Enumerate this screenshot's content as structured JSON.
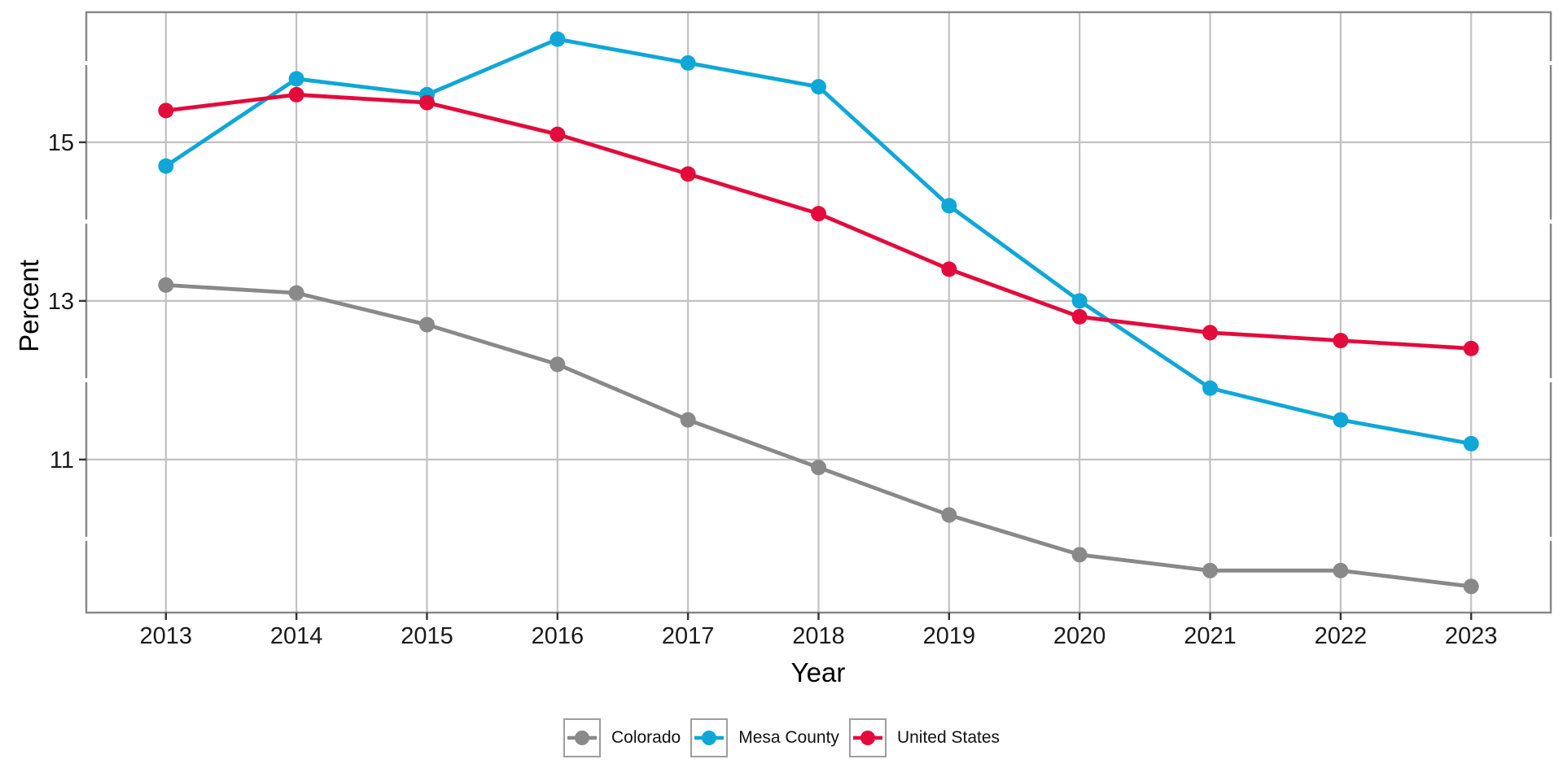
{
  "chart_data": {
    "type": "line",
    "title": "",
    "xlabel": "Year",
    "ylabel": "Percent",
    "x": [
      2013,
      2014,
      2015,
      2016,
      2017,
      2018,
      2019,
      2020,
      2021,
      2022,
      2023
    ],
    "x_tick_labels": [
      "2013",
      "2014",
      "2015",
      "2016",
      "2017",
      "2018",
      "2019",
      "2020",
      "2021",
      "2022",
      "2023"
    ],
    "series": [
      {
        "name": "Colorado",
        "color": "#898989",
        "values": [
          13.2,
          13.1,
          12.7,
          12.2,
          11.5,
          10.9,
          10.3,
          9.8,
          9.6,
          9.6,
          9.4
        ]
      },
      {
        "name": "Mesa County",
        "color": "#0fa7d7",
        "values": [
          14.7,
          15.8,
          15.6,
          16.3,
          16.0,
          15.7,
          14.2,
          13.0,
          11.9,
          11.5,
          11.2
        ]
      },
      {
        "name": "United States",
        "color": "#e30b3c",
        "values": [
          15.4,
          15.6,
          15.5,
          15.1,
          14.6,
          14.1,
          13.4,
          12.8,
          12.6,
          12.5,
          12.4
        ]
      }
    ],
    "y_axis": {
      "major_ticks": [
        15,
        13,
        11
      ],
      "major_tick_labels": [
        "15",
        "13",
        "11"
      ],
      "minor_ticks": [
        16,
        14,
        12,
        10
      ],
      "range": [
        9.07,
        16.64
      ]
    },
    "x_axis_range": [
      2012.39,
      2023.61
    ],
    "grid": "major-only",
    "legend_position": "bottom"
  },
  "styles": {
    "background": "#ffffff",
    "grid_color": "#c2c2c2",
    "border_color": "#868686",
    "tick_color": "#343434",
    "tick_label_color": "#1a1a1a",
    "axis_title_color": "#000000",
    "legend_border_color": "#9e9e9e",
    "legend_text_color": "#111111"
  }
}
